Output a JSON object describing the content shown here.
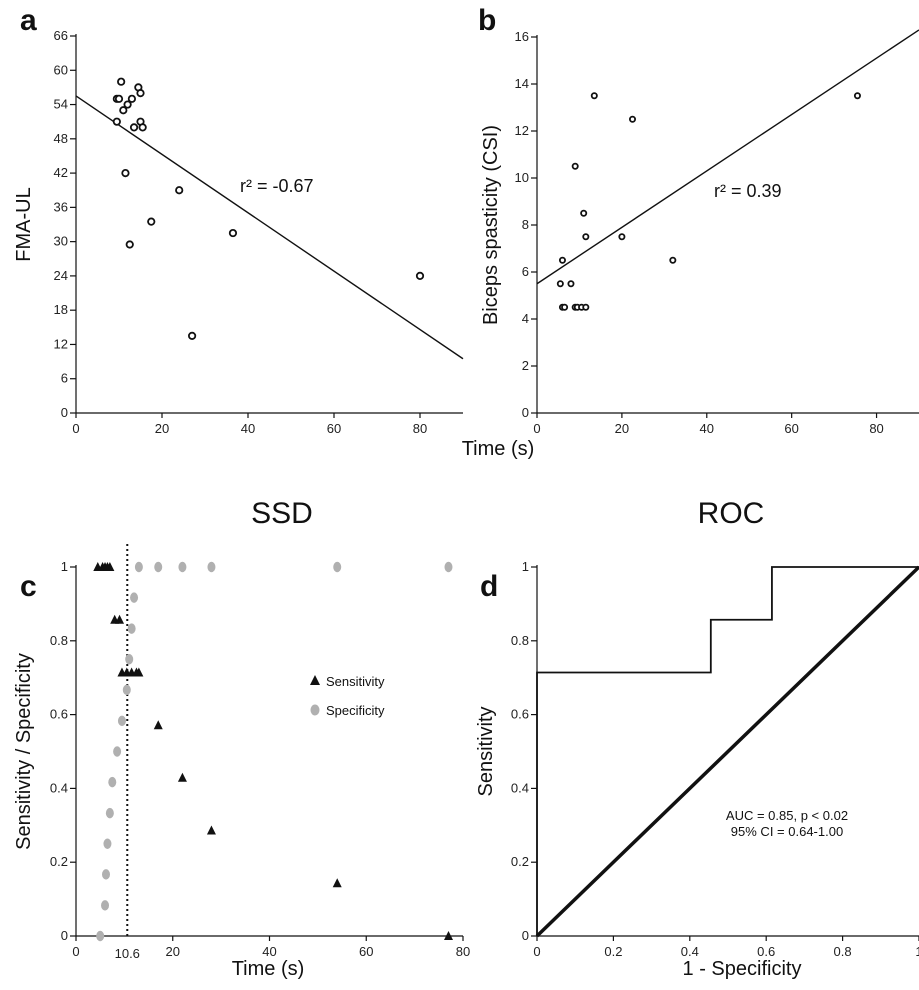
{
  "chart_data": [
    {
      "panel_label": "a",
      "type": "scatter",
      "xlabel": "",
      "ylabel": "FMA-UL",
      "xlim": [
        0,
        90
      ],
      "ylim": [
        0,
        66
      ],
      "xticks": [
        "0",
        "20",
        "40",
        "60",
        "80"
      ],
      "yticks": [
        "0",
        "6",
        "12",
        "18",
        "24",
        "30",
        "36",
        "42",
        "48",
        "54",
        "60",
        "66"
      ],
      "points": [
        [
          10.5,
          58
        ],
        [
          14.5,
          57
        ],
        [
          15,
          56
        ],
        [
          9.5,
          55
        ],
        [
          10,
          55
        ],
        [
          13,
          55
        ],
        [
          12,
          54
        ],
        [
          11,
          53
        ],
        [
          9.5,
          51
        ],
        [
          15,
          51
        ],
        [
          15.5,
          50
        ],
        [
          13.5,
          50
        ],
        [
          11.5,
          42
        ],
        [
          24,
          39
        ],
        [
          17.5,
          33.5
        ],
        [
          36.5,
          31.5
        ],
        [
          12.5,
          29.5
        ],
        [
          80,
          24
        ],
        [
          27,
          13.5
        ]
      ],
      "regression": {
        "x": [
          0,
          90
        ],
        "y": [
          55.5,
          9.5
        ]
      },
      "annotation": "r² = -0.67"
    },
    {
      "panel_label": "b",
      "type": "scatter",
      "xlabel": "Time (s)",
      "ylabel": "Biceps spasticity (CSI)",
      "xlim": [
        0,
        90
      ],
      "ylim": [
        0,
        16
      ],
      "xticks": [
        "0",
        "20",
        "40",
        "60",
        "80"
      ],
      "yticks": [
        "0",
        "2",
        "4",
        "6",
        "8",
        "10",
        "12",
        "14",
        "16"
      ],
      "points": [
        [
          13.5,
          13.5
        ],
        [
          75.5,
          13.5
        ],
        [
          22.5,
          12.5
        ],
        [
          9,
          10.5
        ],
        [
          11,
          8.5
        ],
        [
          11.5,
          7.5
        ],
        [
          20,
          7.5
        ],
        [
          6,
          6.5
        ],
        [
          32,
          6.5
        ],
        [
          5.5,
          5.5
        ],
        [
          8,
          5.5
        ],
        [
          6,
          4.5
        ],
        [
          6.5,
          4.5
        ],
        [
          9,
          4.5
        ],
        [
          9.5,
          4.5
        ],
        [
          10.5,
          4.5
        ],
        [
          11.5,
          4.5
        ]
      ],
      "regression": {
        "x": [
          0,
          90
        ],
        "y": [
          5.5,
          16.3
        ]
      },
      "annotation": "r² = 0.39"
    },
    {
      "panel_label": "c",
      "title": "SSD",
      "type": "scatter",
      "xlabel": "Time (s)",
      "ylabel": "Sensitivity / Specificity",
      "xlim": [
        0,
        80
      ],
      "ylim": [
        0,
        1
      ],
      "xticks": [
        "0",
        "20",
        "40",
        "60",
        "80"
      ],
      "yticks": [
        "0",
        "0.2",
        "0.4",
        "0.6",
        "0.8",
        "1"
      ],
      "cutoff": 10.6,
      "cutoff_label": "10.6",
      "series": [
        {
          "name": "Sensitivity",
          "marker": "triangle",
          "color": "#111111",
          "points": [
            [
              4.5,
              1
            ],
            [
              5.5,
              1
            ],
            [
              6,
              1
            ],
            [
              6.5,
              1
            ],
            [
              7,
              1
            ],
            [
              8,
              0.857
            ],
            [
              9,
              0.857
            ],
            [
              9.5,
              0.714
            ],
            [
              10.5,
              0.714
            ],
            [
              11.5,
              0.714
            ],
            [
              12.5,
              0.714
            ],
            [
              13,
              0.714
            ],
            [
              17,
              0.571
            ],
            [
              22,
              0.429
            ],
            [
              28,
              0.286
            ],
            [
              54,
              0.143
            ],
            [
              77,
              0
            ]
          ]
        },
        {
          "name": "Specificity",
          "marker": "circle",
          "color": "#b0b0b0",
          "points": [
            [
              5,
              0
            ],
            [
              6,
              0.083
            ],
            [
              6.2,
              0.167
            ],
            [
              6.5,
              0.25
            ],
            [
              7,
              0.333
            ],
            [
              7.5,
              0.417
            ],
            [
              8.5,
              0.5
            ],
            [
              9.5,
              0.583
            ],
            [
              10.5,
              0.667
            ],
            [
              11,
              0.75
            ],
            [
              11.5,
              0.833
            ],
            [
              12,
              0.917
            ],
            [
              13,
              1
            ],
            [
              17,
              1
            ],
            [
              22,
              1
            ],
            [
              28,
              1
            ],
            [
              54,
              1
            ],
            [
              77,
              1
            ]
          ]
        }
      ]
    },
    {
      "panel_label": "d",
      "title": "ROC",
      "type": "line",
      "xlabel": "1 - Specificity",
      "ylabel": "Sensitivity",
      "xlim": [
        0,
        1
      ],
      "ylim": [
        0,
        1
      ],
      "xticks": [
        "0",
        "0.2",
        "0.4",
        "0.6",
        "0.8",
        "1"
      ],
      "yticks": [
        "0",
        "0.2",
        "0.4",
        "0.6",
        "0.8",
        "1"
      ],
      "roc_x": [
        0,
        0,
        0.455,
        0.455,
        0.615,
        0.615,
        1
      ],
      "roc_y": [
        0,
        0.714,
        0.714,
        0.857,
        0.857,
        1,
        1
      ],
      "reference_x": [
        0,
        1
      ],
      "reference_y": [
        0,
        1
      ],
      "annotation_lines": [
        "AUC = 0.85, p < 0.02",
        "95% CI = 0.64-1.00"
      ]
    }
  ]
}
